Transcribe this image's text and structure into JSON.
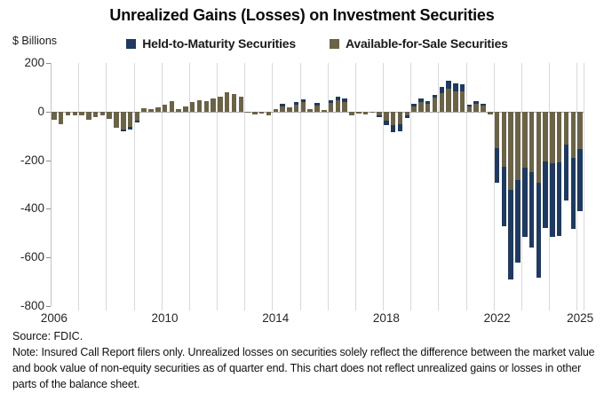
{
  "title": "Unrealized Gains (Losses) on Investment Securities",
  "y_unit_label": "$ Billions",
  "legend": [
    {
      "label": "Held-to-Maturity Securities",
      "color": "#1f3a5e"
    },
    {
      "label": "Available-for-Sale Securities",
      "color": "#6b6347"
    }
  ],
  "footer": {
    "source": "Source: FDIC.",
    "note": "Note: Insured Call Report filers only. Unrealized losses on securities solely reflect the difference between the market value and book value of non-equity securities as of quarter end. This chart does not reflect unrealized gains or losses in other parts of the balance sheet."
  },
  "chart_data": {
    "type": "bar",
    "stacked": true,
    "title": "Unrealized Gains (Losses) on Investment Securities",
    "ylabel": "$ Billions",
    "ylim": [
      -800,
      200
    ],
    "yticks": [
      200,
      0,
      -200,
      -400,
      -600,
      -800
    ],
    "grid": "vertical-yearly",
    "legend_position": "top",
    "x_start": "2006 Q1",
    "x_end": "2025 Q1",
    "x_frequency": "quarterly",
    "xticks": [
      {
        "label": "2006",
        "quarter_index": 0
      },
      {
        "label": "2010",
        "quarter_index": 16
      },
      {
        "label": "2014",
        "quarter_index": 32
      },
      {
        "label": "2018",
        "quarter_index": 48
      },
      {
        "label": "2022",
        "quarter_index": 64
      },
      {
        "label": "2025",
        "quarter_index": 76
      }
    ],
    "series": [
      {
        "name": "Held-to-Maturity Securities",
        "color": "#1f3a5e",
        "stack_order": "outer",
        "values": [
          0,
          0,
          0,
          0,
          0,
          0,
          0,
          0,
          0,
          0,
          -8,
          -10,
          -7,
          0,
          0,
          0,
          0,
          0,
          0,
          0,
          0,
          0,
          0,
          0,
          0,
          0,
          0,
          0,
          0,
          0,
          0,
          0,
          0,
          9,
          0,
          10,
          12,
          0,
          8,
          0,
          12,
          17,
          15,
          0,
          0,
          0,
          0,
          -5,
          -19,
          -31,
          -28,
          -10,
          10,
          13,
          11,
          14,
          25,
          33,
          32,
          30,
          6,
          11,
          8,
          0,
          -141,
          -242,
          -369,
          -341,
          -284,
          -310,
          -390,
          -274,
          -305,
          -305,
          -230,
          -293,
          -256
        ]
      },
      {
        "name": "Available-for-Sale Securities",
        "color": "#6b6347",
        "stack_order": "inner",
        "values": [
          -33,
          -51,
          -15,
          -17,
          -16,
          -35,
          -21,
          -16,
          -29,
          -67,
          -73,
          -62,
          -36,
          13,
          10,
          18,
          28,
          43,
          12,
          22,
          38,
          46,
          43,
          53,
          62,
          80,
          71,
          62,
          -6,
          -12,
          -9,
          -17,
          10,
          22,
          16,
          30,
          38,
          12,
          26,
          6,
          34,
          45,
          40,
          -15,
          -9,
          -12,
          -3,
          -16,
          -38,
          -55,
          -52,
          -17,
          22,
          40,
          32,
          56,
          76,
          93,
          85,
          83,
          22,
          32,
          24,
          -12,
          -152,
          -228,
          -321,
          -280,
          -232,
          -249,
          -294,
          -204,
          -211,
          -208,
          -134,
          -190,
          -155
        ]
      }
    ]
  }
}
